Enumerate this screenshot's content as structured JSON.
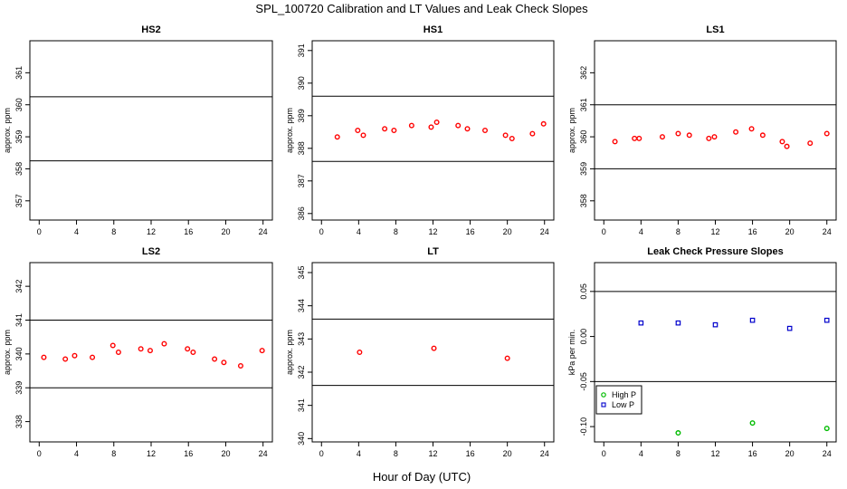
{
  "figure": {
    "title": "SPL_100720  Calibration and LT Values and Leak Check Slopes",
    "xlabel": "Hour of Day (UTC)"
  },
  "chart_data": [
    {
      "type": "scatter",
      "title": "HS2",
      "ylabel": "approx. ppm",
      "xlim": [
        -1,
        25
      ],
      "ylim": [
        356.4,
        362.0
      ],
      "xticks": [
        0,
        4,
        8,
        12,
        16,
        20,
        24
      ],
      "yticks": [
        357,
        358,
        359,
        360,
        361
      ],
      "hlines": [
        360.25,
        358.25
      ],
      "series": [
        {
          "color": "#ff0000",
          "marker": "circle",
          "x": [],
          "y": []
        }
      ]
    },
    {
      "type": "scatter",
      "title": "HS1",
      "ylabel": "approx. ppm",
      "xlim": [
        -1,
        25
      ],
      "ylim": [
        385.8,
        391.3
      ],
      "xticks": [
        0,
        4,
        8,
        12,
        16,
        20,
        24
      ],
      "yticks": [
        386,
        387,
        388,
        389,
        390,
        391
      ],
      "hlines": [
        389.6,
        387.6
      ],
      "series": [
        {
          "color": "#ff0000",
          "marker": "circle",
          "x": [
            1.7,
            3.9,
            4.5,
            6.8,
            7.8,
            9.7,
            11.8,
            12.4,
            14.7,
            15.7,
            17.6,
            19.8,
            20.5,
            22.7,
            23.9
          ],
          "y": [
            388.35,
            388.55,
            388.4,
            388.6,
            388.55,
            388.7,
            388.65,
            388.8,
            388.7,
            388.6,
            388.55,
            388.4,
            388.3,
            388.45,
            388.75
          ]
        }
      ]
    },
    {
      "type": "scatter",
      "title": "LS1",
      "ylabel": "approx. ppm",
      "xlim": [
        -1,
        25
      ],
      "ylim": [
        357.4,
        363.0
      ],
      "xticks": [
        0,
        4,
        8,
        12,
        16,
        20,
        24
      ],
      "yticks": [
        358,
        359,
        360,
        361,
        362
      ],
      "hlines": [
        361.0,
        359.0
      ],
      "series": [
        {
          "color": "#ff0000",
          "marker": "circle",
          "x": [
            1.2,
            3.3,
            3.8,
            6.3,
            8.0,
            9.2,
            11.3,
            11.9,
            14.2,
            15.9,
            17.1,
            19.2,
            19.7,
            22.2,
            24.0
          ],
          "y": [
            359.85,
            359.95,
            359.95,
            360.0,
            360.1,
            360.05,
            359.95,
            360.0,
            360.15,
            360.25,
            360.05,
            359.85,
            359.7,
            359.8,
            360.1
          ]
        }
      ]
    },
    {
      "type": "scatter",
      "title": "LS2",
      "ylabel": "approx. ppm",
      "xlim": [
        -1,
        25
      ],
      "ylim": [
        337.4,
        342.7
      ],
      "xticks": [
        0,
        4,
        8,
        12,
        16,
        20,
        24
      ],
      "yticks": [
        338,
        339,
        340,
        341,
        342
      ],
      "hlines": [
        341.0,
        339.0
      ],
      "series": [
        {
          "color": "#ff0000",
          "marker": "circle",
          "x": [
            0.5,
            2.8,
            3.8,
            5.7,
            7.9,
            8.5,
            10.9,
            11.9,
            13.4,
            15.9,
            16.5,
            18.8,
            19.8,
            21.6,
            23.9
          ],
          "y": [
            339.9,
            339.85,
            339.95,
            339.9,
            340.25,
            340.05,
            340.15,
            340.1,
            340.3,
            340.15,
            340.05,
            339.85,
            339.75,
            339.65,
            340.1
          ]
        }
      ]
    },
    {
      "type": "scatter",
      "title": "LT",
      "ylabel": "approx. ppm",
      "xlim": [
        -1,
        25
      ],
      "ylim": [
        339.9,
        345.3
      ],
      "xticks": [
        0,
        4,
        8,
        12,
        16,
        20,
        24
      ],
      "yticks": [
        340,
        341,
        342,
        343,
        344,
        345
      ],
      "hlines": [
        343.6,
        341.6
      ],
      "series": [
        {
          "color": "#ff0000",
          "marker": "circle",
          "x": [
            4.1,
            12.1,
            20.0
          ],
          "y": [
            342.6,
            342.72,
            342.42
          ]
        }
      ]
    },
    {
      "type": "scatter",
      "title": "Leak Check Pressure Slopes",
      "ylabel": "kPa per min.",
      "xlim": [
        -1,
        25
      ],
      "ylim": [
        -0.117,
        0.082
      ],
      "xticks": [
        0,
        4,
        8,
        12,
        16,
        20,
        24
      ],
      "yticks": [
        -0.1,
        -0.05,
        0.0,
        0.05
      ],
      "ytick_labels": [
        "-0.10",
        "-0.05",
        "0.00",
        "0.05"
      ],
      "hlines": [
        0.05,
        -0.05
      ],
      "legend": {
        "position": "bottom-left",
        "entries": [
          "High P",
          "Low P"
        ]
      },
      "series": [
        {
          "name": "High P",
          "color": "#00bb00",
          "marker": "circle",
          "x": [
            8.0,
            16.0,
            24.0
          ],
          "y": [
            -0.107,
            -0.096,
            -0.102
          ]
        },
        {
          "name": "Low P",
          "color": "#0000cc",
          "marker": "square",
          "x": [
            4.0,
            8.0,
            12.0,
            16.0,
            20.0,
            24.0
          ],
          "y": [
            0.015,
            0.015,
            0.013,
            0.018,
            0.009,
            0.018
          ]
        }
      ]
    }
  ]
}
